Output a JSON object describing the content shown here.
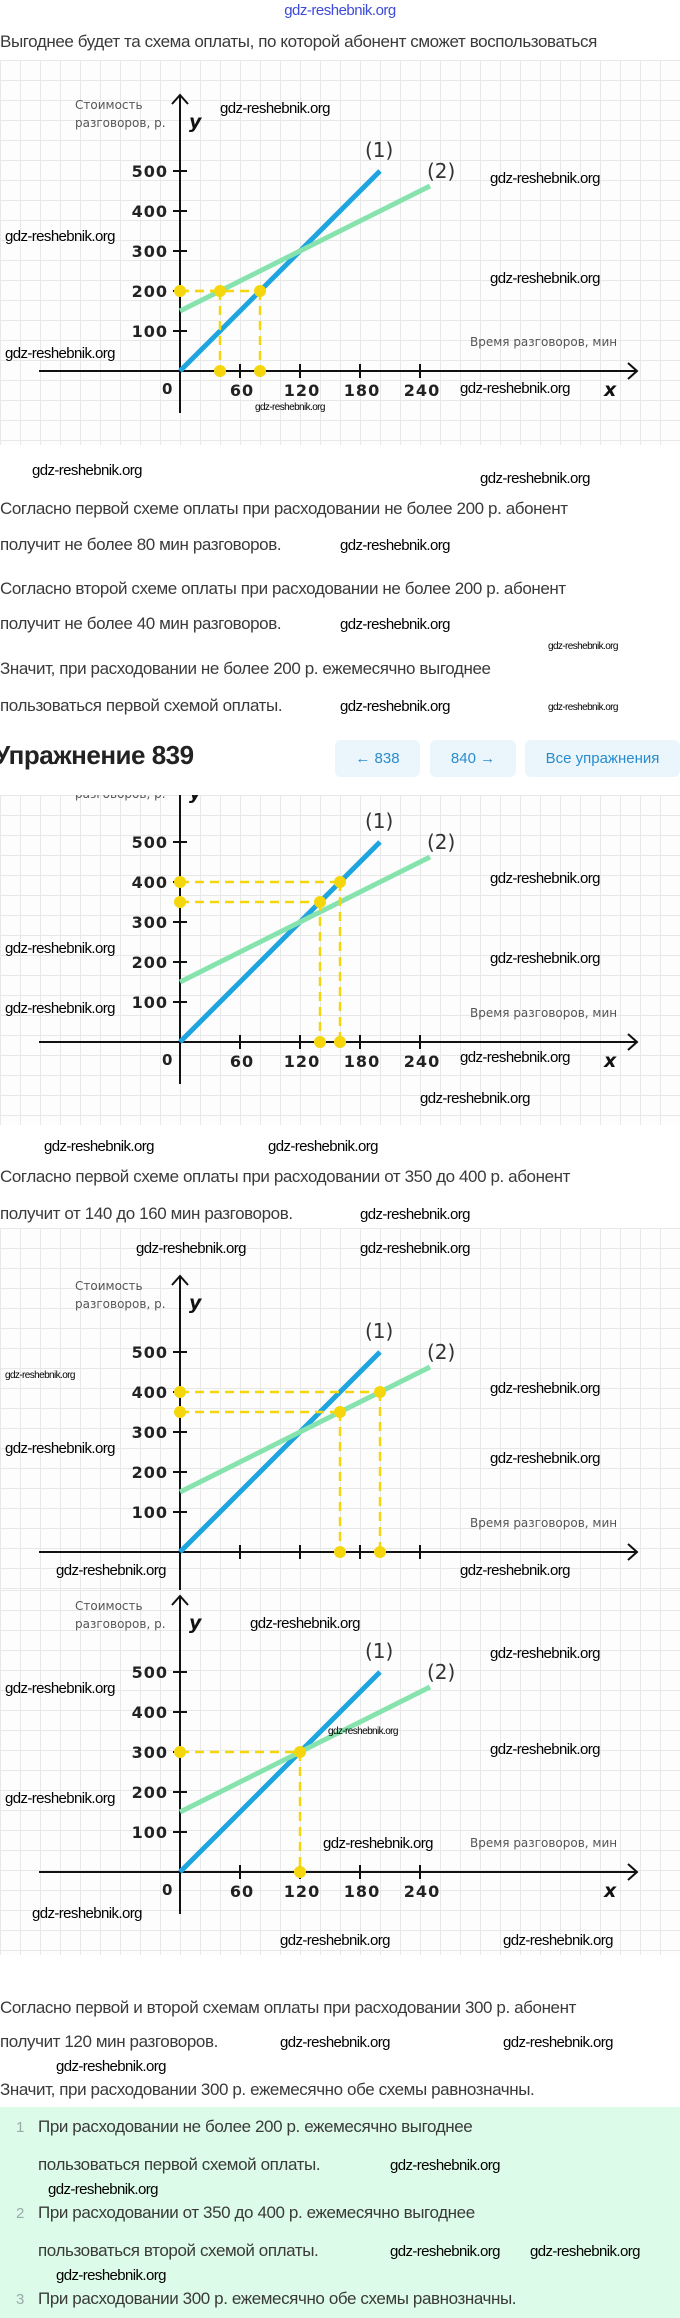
{
  "watermark": "gdz-reshebnik.org",
  "intro": "Выгоднее будет та схема оплаты, по которой абонент сможет воспользоваться",
  "chart_labels": {
    "ylabel_1": "Стоимость",
    "ylabel_2": "разговоров, р.",
    "xlabel": "Время разговоров, мин",
    "y_axis": "y",
    "x_axis": "x",
    "line1_label": "(1)",
    "line2_label": "(2)"
  },
  "text_block_1": [
    "Согласно первой схеме оплаты при расходовании не более 200 р. абонент",
    "получит не более 80 мин разговоров.",
    "Согласно второй схеме оплаты при расходовании не более 200 р. абонент",
    "получит не более 40 мин разговоров.",
    "Значит, при расходовании не более 200 р. ежемесячно выгоднее",
    "пользоваться первой схемой оплаты."
  ],
  "header": {
    "title": "Упражнение 839",
    "prev_label": "← 838",
    "next_label": "840 →",
    "all_label": "Все упражнения"
  },
  "text_block_2": [
    "Согласно первой схеме оплаты при расходовании от 350 до 400 р. абонент",
    "получит от 140 до 160 мин разговоров."
  ],
  "text_block_3": [
    "Согласно первой и второй схемам оплаты при расходовании 300 р. абонент",
    "получит 120 мин разговоров.",
    "Значит, при расходовании 300 р. ежемесячно обе схемы равнозначны."
  ],
  "answers": [
    {
      "num": "1",
      "lines": [
        "При расходовании не более 200 р. ежемесячно выгоднее",
        "пользоваться первой схемой оплаты."
      ]
    },
    {
      "num": "2",
      "lines": [
        "При расходовании от 350 до 400 р. ежемесячно выгоднее",
        "пользоваться второй схемой оплаты."
      ]
    },
    {
      "num": "3",
      "lines": [
        "При расходовании 300 р. ежемесячно обе схемы равнозначны."
      ]
    }
  ],
  "colors": {
    "line1": "#1ea5e0",
    "line2": "#86e3ae",
    "highlight": "#f5d60c",
    "answer_bg": "#dcfbe9",
    "accent": "#2a8ccc"
  },
  "chart_data": [
    {
      "type": "line",
      "xlabel": "Время разговоров, мин",
      "ylabel": "Стоимость разговоров, р.",
      "x_ticks": [
        60,
        120,
        180,
        240
      ],
      "y_ticks": [
        100,
        200,
        300,
        400,
        500
      ],
      "grid": true,
      "series": [
        {
          "name": "(1)",
          "x": [
            0,
            200
          ],
          "y": [
            0,
            500
          ]
        },
        {
          "name": "(2)",
          "x": [
            0,
            250
          ],
          "y": [
            150,
            462.5
          ]
        }
      ],
      "highlight_points": [
        [
          0,
          200
        ],
        [
          40,
          200
        ],
        [
          80,
          200
        ],
        [
          40,
          0
        ],
        [
          80,
          0
        ]
      ]
    },
    {
      "type": "line",
      "xlabel": "Время разговоров, мин",
      "ylabel": "Стоимость разговоров, р.",
      "x_ticks": [
        60,
        120,
        180,
        240
      ],
      "y_ticks": [
        100,
        200,
        300,
        400,
        500
      ],
      "grid": true,
      "series": [
        {
          "name": "(1)",
          "x": [
            0,
            200
          ],
          "y": [
            0,
            500
          ]
        },
        {
          "name": "(2)",
          "x": [
            0,
            250
          ],
          "y": [
            150,
            462.5
          ]
        }
      ],
      "highlight_points": [
        [
          0,
          400
        ],
        [
          0,
          350
        ],
        [
          160,
          400
        ],
        [
          140,
          350
        ],
        [
          140,
          0
        ],
        [
          160,
          0
        ]
      ]
    },
    {
      "type": "line",
      "xlabel": "Время разговоров, мин",
      "ylabel": "Стоимость разговоров, р.",
      "x_ticks": [],
      "y_ticks": [
        100,
        200,
        300,
        400,
        500
      ],
      "grid": true,
      "series": [
        {
          "name": "(1)",
          "x": [
            0,
            200
          ],
          "y": [
            0,
            500
          ]
        },
        {
          "name": "(2)",
          "x": [
            0,
            250
          ],
          "y": [
            150,
            462.5
          ]
        }
      ],
      "highlight_points": [
        [
          0,
          400
        ],
        [
          0,
          350
        ],
        [
          200,
          400
        ],
        [
          160,
          350
        ],
        [
          160,
          0
        ],
        [
          200,
          0
        ]
      ]
    },
    {
      "type": "line",
      "xlabel": "Время разговоров, мин",
      "ylabel": "Стоимость разговоров, р.",
      "x_ticks": [
        60,
        120,
        180,
        240
      ],
      "y_ticks": [
        100,
        200,
        300,
        400,
        500
      ],
      "grid": true,
      "series": [
        {
          "name": "(1)",
          "x": [
            0,
            200
          ],
          "y": [
            0,
            500
          ]
        },
        {
          "name": "(2)",
          "x": [
            0,
            250
          ],
          "y": [
            150,
            462.5
          ]
        }
      ],
      "highlight_points": [
        [
          0,
          300
        ],
        [
          120,
          300
        ],
        [
          120,
          0
        ]
      ]
    }
  ]
}
